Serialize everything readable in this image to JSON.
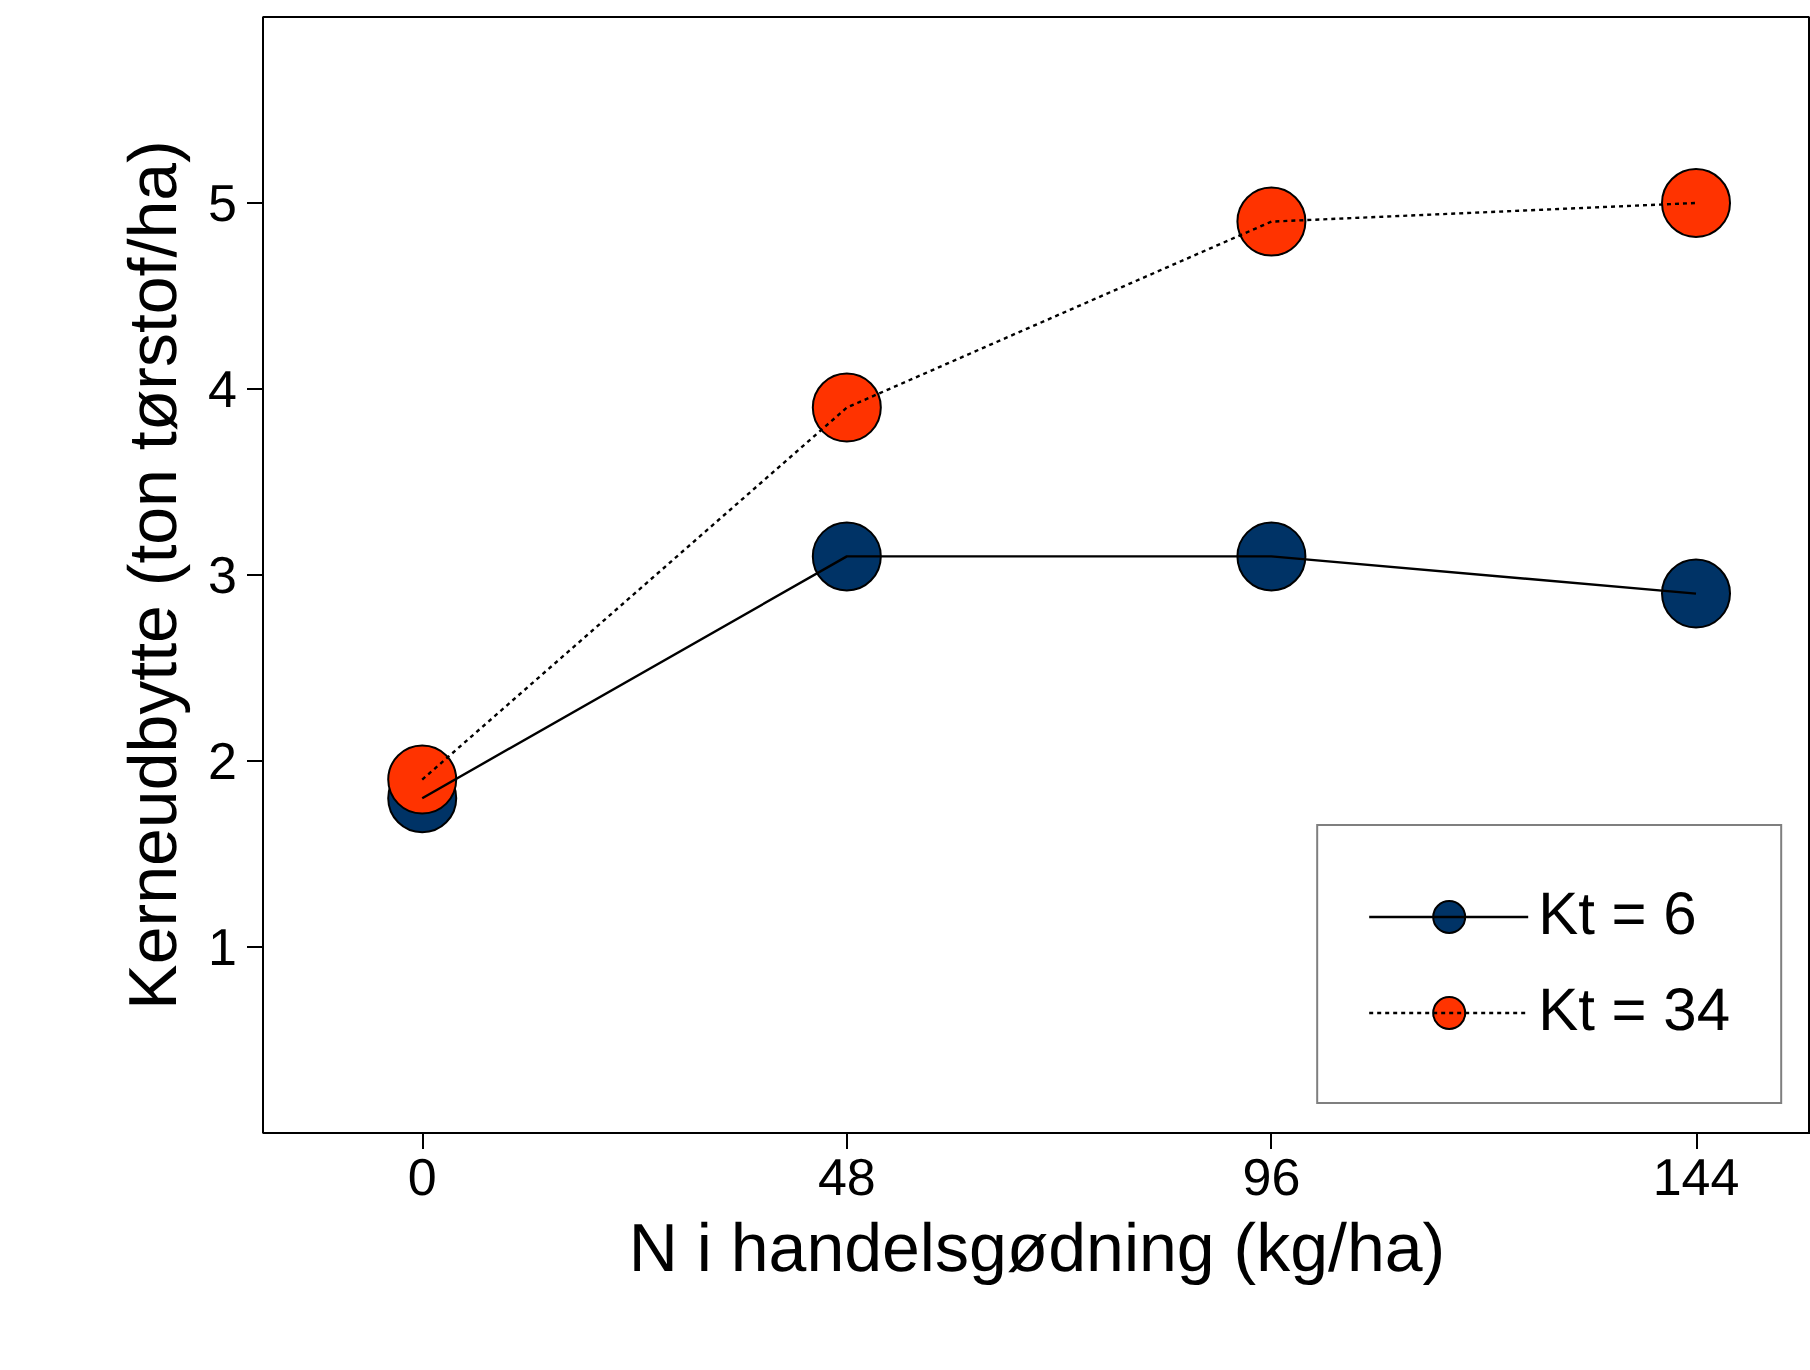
{
  "chart_data": {
    "type": "line",
    "xlabel": "N i handelsgødning (kg/ha)",
    "ylabel": "Kerneudbytte (ton tørstof/ha)",
    "x": [
      0,
      48,
      96,
      144
    ],
    "series": [
      {
        "name": "Kt = 6",
        "color": "#003366",
        "values": [
          1.8,
          3.1,
          3.1,
          2.9
        ],
        "line_style": "solid"
      },
      {
        "name": "Kt = 34",
        "color": "#ff3300",
        "values": [
          1.9,
          3.9,
          4.9,
          5.0
        ],
        "line_style": "dotted"
      }
    ],
    "xlim": [
      -18,
      157
    ],
    "xticks": [
      0,
      48,
      96,
      144
    ],
    "ylim": [
      0,
      6
    ],
    "yticks": [
      1,
      2,
      3,
      4,
      5
    ],
    "marker": "circle",
    "grid": false,
    "legend": "bottom right"
  }
}
